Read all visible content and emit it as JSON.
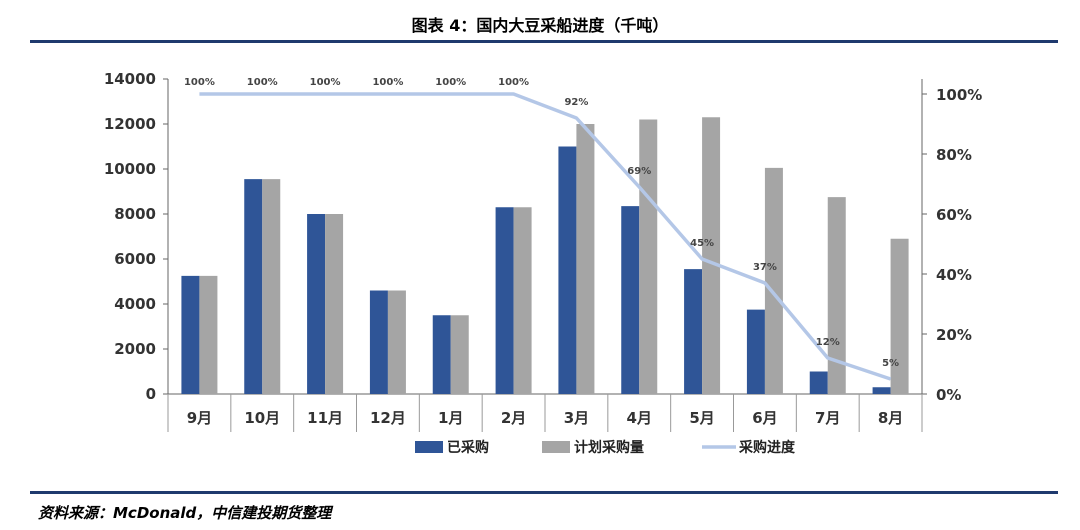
{
  "header": {
    "title": "图表 4：国内大豆采船进度（千吨）"
  },
  "footer": {
    "source": "资料来源：McDonald，中信建投期货整理"
  },
  "chart_data": {
    "type": "bar",
    "title": "图表 4：国内大豆采船进度（千吨）",
    "categories": [
      "9月",
      "10月",
      "11月",
      "12月",
      "1月",
      "2月",
      "3月",
      "4月",
      "5月",
      "6月",
      "7月",
      "8月"
    ],
    "series": [
      {
        "name": "已采购",
        "type": "bar",
        "color": "#2f5597",
        "values": [
          5250,
          9550,
          8000,
          4600,
          3500,
          8300,
          11000,
          8350,
          5550,
          3750,
          1000,
          300
        ]
      },
      {
        "name": "计划采购量",
        "type": "bar",
        "color": "#a5a5a5",
        "values": [
          5250,
          9550,
          8000,
          4600,
          3500,
          8300,
          12000,
          12200,
          12300,
          10050,
          8750,
          6900
        ]
      },
      {
        "name": "采购进度",
        "type": "line",
        "axis": "right",
        "color": "#b4c7e7",
        "values": [
          100,
          100,
          100,
          100,
          100,
          100,
          92,
          69,
          45,
          37,
          12,
          5
        ],
        "labels": [
          "100%",
          "100%",
          "100%",
          "100%",
          "100%",
          "100%",
          "92%",
          "69%",
          "45%",
          "37%",
          "12%",
          "5%"
        ]
      }
    ],
    "y_left": {
      "min": 0,
      "max": 14000,
      "ticks": [
        "0",
        "2000",
        "4000",
        "6000",
        "8000",
        "10000",
        "12000",
        "14000"
      ]
    },
    "y_right": {
      "min": 0,
      "max": 105,
      "ticks": [
        "0%",
        "20%",
        "40%",
        "60%",
        "80%",
        "100%"
      ]
    },
    "legend": {
      "position": "bottom",
      "items": [
        "已采购",
        "计划采购量",
        "采购进度"
      ]
    }
  }
}
